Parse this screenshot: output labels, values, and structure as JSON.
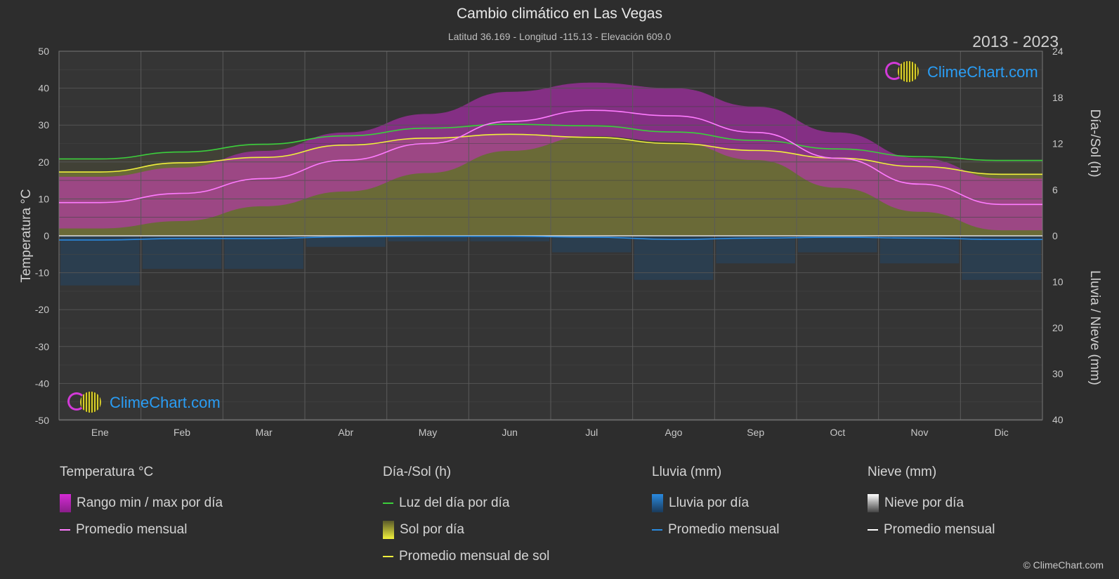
{
  "header": {
    "title": "Cambio climático en Las Vegas",
    "subtitle": "Latitud 36.169 - Longitud -115.13 - Elevación 609.0",
    "years": "2013 - 2023"
  },
  "logo": {
    "text": "ClimeChart.com"
  },
  "axes": {
    "left_label": "Temperatura °C",
    "right_top_label": "Día-/Sol (h)",
    "right_bottom_label": "Lluvia / Nieve (mm)"
  },
  "legend": {
    "temperature": {
      "title": "Temperatura °C",
      "range": "Rango min / max por día",
      "avg": "Promedio mensual"
    },
    "daysun": {
      "title": "Día-/Sol (h)",
      "daylight": "Luz del día por día",
      "sun": "Sol por día",
      "sun_avg": "Promedio mensual de sol"
    },
    "rain": {
      "title": "Lluvia (mm)",
      "daily": "Lluvia por día",
      "avg": "Promedio mensual"
    },
    "snow": {
      "title": "Nieve (mm)",
      "daily": "Nieve por día",
      "avg": "Promedio mensual"
    }
  },
  "copyright": "© ClimeChart.com",
  "colors": {
    "background": "#2d2d2d",
    "temp_range": "#d42bd4",
    "temp_avg": "#ff7bff",
    "daylight": "#3ccf3c",
    "sunshine": "#c8c83c",
    "sun_avg": "#f0f03c",
    "rain": "#2a7fd4",
    "snow": "#ffffff"
  },
  "chart_data": {
    "type": "area",
    "categories": [
      "Ene",
      "Feb",
      "Mar",
      "Abr",
      "May",
      "Jun",
      "Jul",
      "Ago",
      "Sep",
      "Oct",
      "Nov",
      "Dic"
    ],
    "y_left": {
      "label": "Temperatura °C",
      "range": [
        -50,
        50
      ],
      "ticks": [
        50,
        40,
        30,
        20,
        10,
        0,
        -10,
        -20,
        -30,
        -40,
        -50
      ]
    },
    "y_right_top": {
      "label": "Día-/Sol (h)",
      "range": [
        0,
        24
      ],
      "ticks": [
        24,
        18,
        12,
        6,
        0
      ]
    },
    "y_right_bottom": {
      "label": "Lluvia / Nieve (mm)",
      "range": [
        0,
        40
      ],
      "ticks": [
        0,
        10,
        20,
        30,
        40
      ]
    },
    "series": [
      {
        "name": "Promedio mensual",
        "group": "temperature",
        "values": [
          9,
          11.5,
          15.5,
          20.5,
          25,
          31,
          34,
          32.5,
          28,
          21,
          14,
          8.5
        ]
      },
      {
        "name": "Rango min / max por día",
        "group": "temperature",
        "min": [
          2,
          4,
          8,
          12,
          17,
          23,
          27,
          25.5,
          20.5,
          13,
          6.5,
          1.5
        ],
        "max": [
          16,
          18.5,
          23,
          28,
          33,
          39,
          41.5,
          40,
          35,
          28,
          21,
          15.5
        ]
      },
      {
        "name": "Luz del día por día",
        "group": "daysun",
        "values": [
          10.0,
          10.9,
          11.9,
          13.0,
          14.0,
          14.5,
          14.3,
          13.5,
          12.4,
          11.3,
          10.3,
          9.8
        ]
      },
      {
        "name": "Promedio mensual de sol",
        "group": "daysun",
        "values": [
          8.3,
          9.5,
          10.2,
          11.8,
          12.7,
          13.2,
          12.8,
          12.0,
          11.1,
          10.1,
          9.0,
          8.0
        ]
      },
      {
        "name": "Lluvia - Promedio mensual",
        "group": "rain",
        "values": [
          0.9,
          0.6,
          0.6,
          0.2,
          0.1,
          0.1,
          0.3,
          0.8,
          0.5,
          0.3,
          0.5,
          0.8
        ]
      },
      {
        "name": "Nieve - Promedio mensual",
        "group": "snow",
        "values": [
          0,
          0,
          0,
          0,
          0,
          0,
          0,
          0,
          0,
          0,
          0,
          0
        ]
      }
    ],
    "grid": true
  }
}
